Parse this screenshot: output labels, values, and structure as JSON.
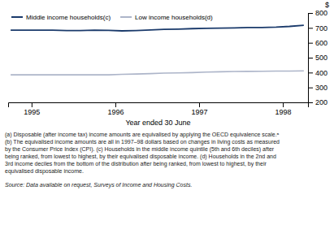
{
  "chart_data": {
    "type": "line",
    "xlabel": "Year ended 30 June",
    "ylabel": "$",
    "x": [
      1994.75,
      1994.92,
      1995.08,
      1995.25,
      1995.42,
      1995.58,
      1995.75,
      1995.92,
      1996.08,
      1996.25,
      1996.42,
      1996.58,
      1996.75,
      1996.92,
      1997.08,
      1997.25,
      1997.42,
      1997.58,
      1997.75,
      1997.92,
      1998.08,
      1998.25
    ],
    "series": [
      {
        "name": "Middle income households(c)",
        "color": "#1a3a6b",
        "values": [
          685,
          685,
          685,
          685,
          682,
          682,
          685,
          683,
          680,
          682,
          686,
          690,
          692,
          695,
          697,
          698,
          700,
          702,
          703,
          705,
          710,
          718
        ]
      },
      {
        "name": "Low income households(d)",
        "color": "#adb5c9",
        "values": [
          385,
          385,
          385,
          385,
          385,
          385,
          385,
          385,
          388,
          390,
          393,
          396,
          398,
          400,
          403,
          405,
          407,
          408,
          409,
          410,
          410,
          411
        ]
      }
    ],
    "xlim": [
      1994.72,
      1998.3
    ],
    "xticks": [
      1995,
      1996,
      1997,
      1998
    ],
    "ylim": [
      200,
      800
    ],
    "yticks": [
      200,
      300,
      400,
      500,
      600,
      700,
      800
    ],
    "grid": false,
    "legend": "upper left",
    "footnotes": [
      "(a) Disposable (after income tax) income amounts are equivalised by applying  the OECD equivalence scale.ᵃ",
      "(b) The equivalised income amounts are all in 1997–98 dollars based on changes in living costs as measured",
      "by the Consumer Price Index (CPI). (c) Households in the middle income quintile (5th and 6th deciles) after",
      "being ranked, from lowest to highest, by their equivalised disposable income. (d) Households in the 2nd and",
      "3rd income deciles from the bottom of the distribution after being ranked, from lowest to highest, by their",
      "equivalised disposable income."
    ],
    "source": "Source: Data available on request, Surveys of Income and Housing Costs."
  }
}
